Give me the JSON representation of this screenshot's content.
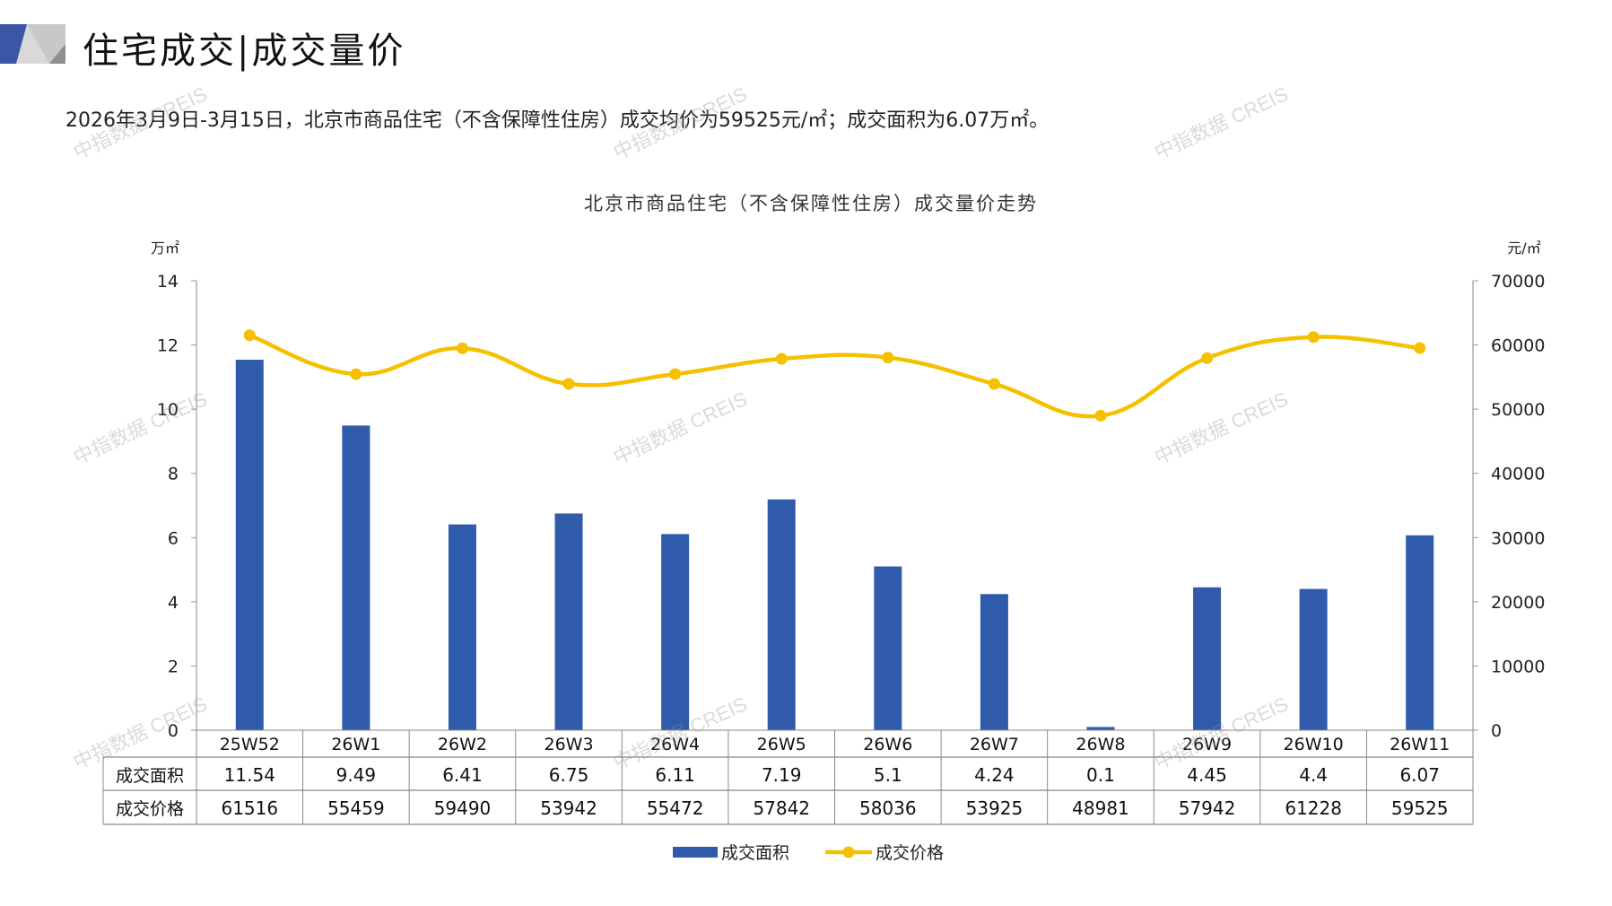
{
  "header": {
    "title": "住宅成交|成交量价",
    "summary": "2026年3月9日-3月15日，北京市商品住宅（不含保障性住房）成交均价为59525元/㎡；成交面积为6.07万㎡。"
  },
  "watermark": "中指数据 CREIS",
  "colors": {
    "bar": "#2F5BAA",
    "line": "#F5C000",
    "accent": "#3A56A5"
  },
  "chart_data": {
    "type": "bar+line",
    "title": "北京市商品住宅（不含保障性住房）成交量价走势",
    "categories": [
      "25W52",
      "26W1",
      "26W2",
      "26W3",
      "26W4",
      "26W5",
      "26W6",
      "26W7",
      "26W8",
      "26W9",
      "26W10",
      "26W11"
    ],
    "series": [
      {
        "name": "成交面积",
        "type": "bar",
        "axis": "left",
        "values": [
          11.54,
          9.49,
          6.41,
          6.75,
          6.11,
          7.19,
          5.1,
          4.24,
          0.1,
          4.45,
          4.4,
          6.07
        ],
        "labels": [
          "11.54",
          "9.49",
          "6.41",
          "6.75",
          "6.11",
          "7.19",
          "5.1",
          "4.24",
          "0.1",
          "4.45",
          "4.4",
          "6.07"
        ]
      },
      {
        "name": "成交价格",
        "type": "line",
        "axis": "right",
        "values": [
          61516,
          55459,
          59490,
          53942,
          55472,
          57842,
          58036,
          53925,
          48981,
          57942,
          61228,
          59525
        ],
        "labels": [
          "61516",
          "55459",
          "59490",
          "53942",
          "55472",
          "57842",
          "58036",
          "53925",
          "48981",
          "57942",
          "61228",
          "59525"
        ]
      }
    ],
    "y_left": {
      "label": "万㎡",
      "range": [
        0,
        14
      ],
      "ticks": [
        "0",
        "2",
        "4",
        "6",
        "8",
        "10",
        "12",
        "14"
      ]
    },
    "y_right": {
      "label": "元/㎡",
      "range": [
        0,
        70000
      ],
      "ticks": [
        "0",
        "10000",
        "20000",
        "30000",
        "40000",
        "50000",
        "60000",
        "70000"
      ]
    },
    "legend": {
      "placement": "bottom"
    },
    "grid": false
  }
}
